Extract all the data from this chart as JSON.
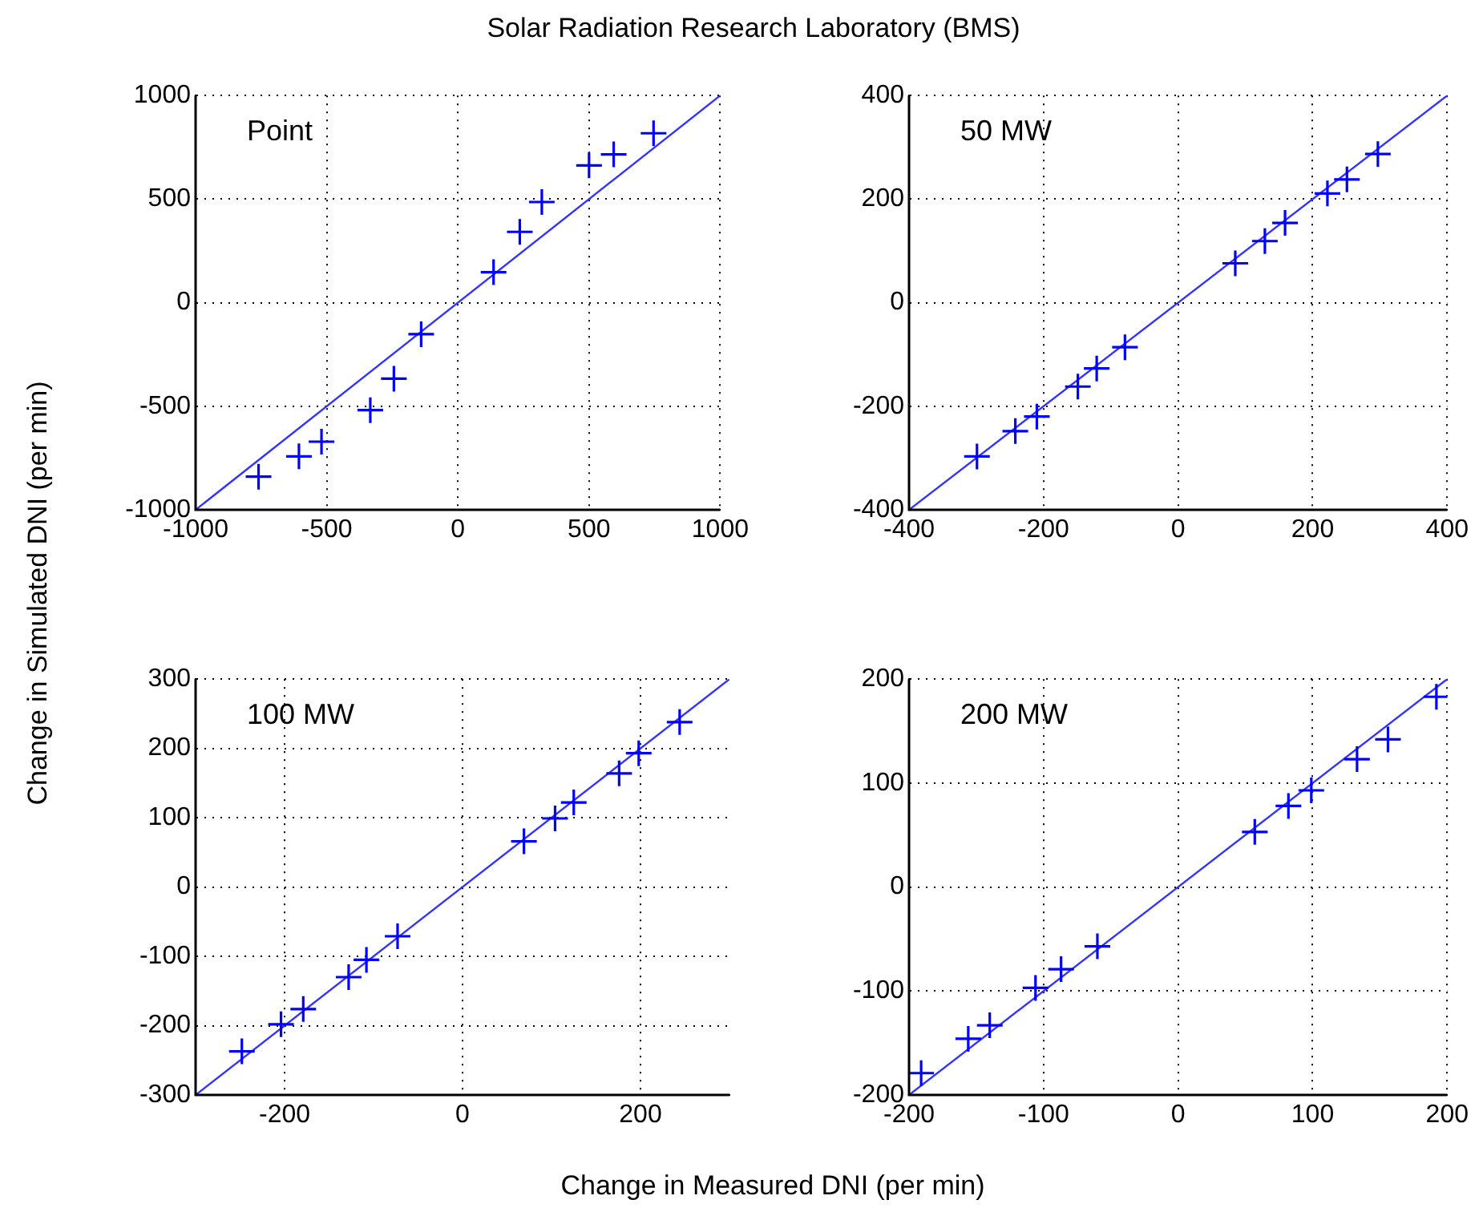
{
  "chart_data": [
    {
      "type": "scatter",
      "title": "Solar Radiation Research Laboratory (BMS)",
      "xlabel": "Change in Measured DNI (per min)",
      "ylabel": "Change in Simulated DNI (per min)",
      "annotations": [
        "Point"
      ],
      "xlim": [
        -1000,
        1000
      ],
      "ylim": [
        -1000,
        1000
      ],
      "xticks": [
        -1000,
        -500,
        0,
        500,
        1000
      ],
      "yticks": [
        -1000,
        -500,
        0,
        500,
        1000
      ],
      "grid": true,
      "series": [
        {
          "color": "#0000ff",
          "marker": "cross",
          "x": [
            -760,
            -606,
            -520,
            -334,
            -244,
            -140,
            136,
            236,
            320,
            500,
            594,
            746
          ],
          "values": [
            -840,
            -742,
            -671,
            -519,
            -367,
            -152,
            147,
            342,
            486,
            663,
            716,
            818
          ]
        },
        {
          "type": "line",
          "color": "#3333ff",
          "marker": "none",
          "x": [
            -1000,
            1000
          ],
          "values": [
            -1000,
            1000
          ]
        }
      ]
    },
    {
      "type": "scatter",
      "annotations": [
        "50 MW"
      ],
      "xlim": [
        -400,
        400
      ],
      "ylim": [
        -400,
        400
      ],
      "xticks": [
        -400,
        -200,
        0,
        200,
        400
      ],
      "yticks": [
        -400,
        -200,
        0,
        200,
        400
      ],
      "grid": true,
      "series": [
        {
          "color": "#0000ff",
          "marker": "cross",
          "x": [
            -299,
            -242,
            -210,
            -149,
            -121,
            -79,
            85,
            129,
            159,
            222,
            251,
            297
          ],
          "values": [
            -297,
            -248,
            -220,
            -162,
            -127,
            -86,
            76,
            119,
            154,
            211,
            238,
            287
          ]
        },
        {
          "type": "line",
          "color": "#3333ff",
          "marker": "none",
          "x": [
            -400,
            400
          ],
          "values": [
            -400,
            400
          ]
        }
      ]
    },
    {
      "type": "scatter",
      "annotations": [
        "100 MW"
      ],
      "xlim": [
        -300,
        300
      ],
      "ylim": [
        -300,
        300
      ],
      "xticks": [
        -200,
        0,
        200
      ],
      "yticks": [
        -300,
        -200,
        -100,
        0,
        100,
        200,
        300
      ],
      "grid": true,
      "series": [
        {
          "color": "#0000ff",
          "marker": "cross",
          "x": [
            -248,
            -204,
            -179,
            -128,
            -108,
            -73,
            69,
            104,
            125,
            176,
            198,
            244
          ],
          "values": [
            -237,
            -198,
            -176,
            -130,
            -105,
            -71,
            66,
            99,
            122,
            164,
            193,
            238
          ]
        },
        {
          "type": "line",
          "color": "#3333ff",
          "marker": "none",
          "x": [
            -300,
            300
          ],
          "values": [
            -300,
            300
          ]
        }
      ]
    },
    {
      "type": "scatter",
      "annotations": [
        "200 MW"
      ],
      "xlim": [
        -200,
        200
      ],
      "ylim": [
        -200,
        200
      ],
      "xticks": [
        -200,
        -100,
        0,
        100,
        200
      ],
      "yticks": [
        -200,
        -100,
        0,
        100,
        200
      ],
      "grid": true,
      "series": [
        {
          "color": "#0000ff",
          "marker": "cross",
          "x": [
            -191,
            -156,
            -140,
            -106,
            -87,
            -60,
            57,
            82,
            99,
            133,
            156,
            192
          ],
          "values": [
            -179,
            -146,
            -133,
            -97,
            -79,
            -57,
            53,
            78,
            93,
            123,
            142,
            183
          ]
        },
        {
          "type": "line",
          "color": "#3333ff",
          "marker": "none",
          "x": [
            -200,
            200
          ],
          "values": [
            -200,
            200
          ]
        }
      ]
    }
  ]
}
